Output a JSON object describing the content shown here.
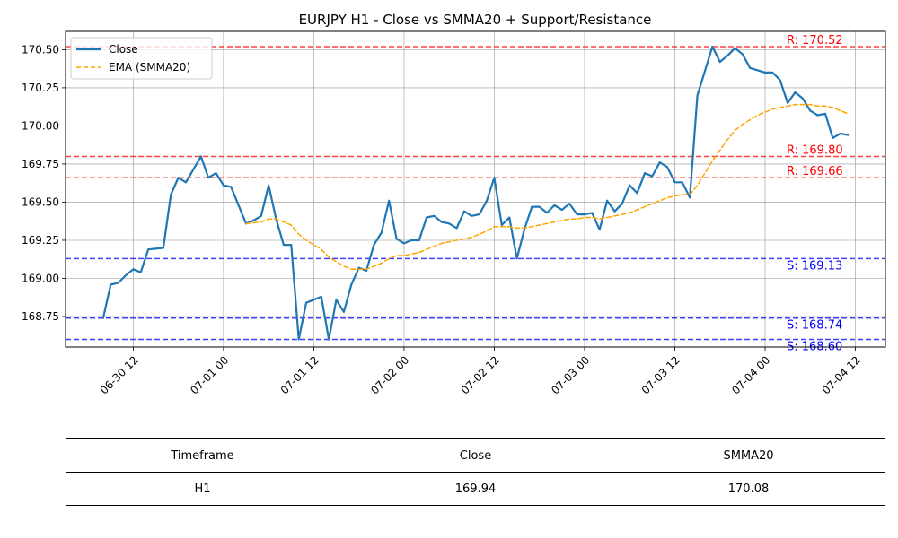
{
  "chart_data": {
    "type": "line",
    "title": "EURJPY H1 - Close vs SMMA20 + Support/Resistance",
    "xlabel": "",
    "ylabel": "",
    "ylim": [
      168.55,
      170.62
    ],
    "xlim": [
      "2025-06-30 03:00",
      "2025-07-04 16:00"
    ],
    "grid": true,
    "legend_position": "top-left",
    "x_ticks": [
      {
        "t": "2025-06-30 12:00",
        "label": "06-30 12"
      },
      {
        "t": "2025-07-01 00:00",
        "label": "07-01 00"
      },
      {
        "t": "2025-07-01 12:00",
        "label": "07-01 12"
      },
      {
        "t": "2025-07-02 00:00",
        "label": "07-02 00"
      },
      {
        "t": "2025-07-02 12:00",
        "label": "07-02 12"
      },
      {
        "t": "2025-07-03 00:00",
        "label": "07-03 00"
      },
      {
        "t": "2025-07-03 12:00",
        "label": "07-03 12"
      },
      {
        "t": "2025-07-04 00:00",
        "label": "07-04 00"
      },
      {
        "t": "2025-07-04 12:00",
        "label": "07-04 12"
      }
    ],
    "y_ticks": [
      {
        "v": 168.75,
        "label": "168.75"
      },
      {
        "v": 169.0,
        "label": "169.00"
      },
      {
        "v": 169.25,
        "label": "169.25"
      },
      {
        "v": 169.5,
        "label": "169.50"
      },
      {
        "v": 169.75,
        "label": "169.75"
      },
      {
        "v": 170.0,
        "label": "170.00"
      },
      {
        "v": 170.25,
        "label": "170.25"
      },
      {
        "v": 170.5,
        "label": "170.50"
      }
    ],
    "series": [
      {
        "name": "Close",
        "color": "#1f77b4",
        "style": "solid",
        "points": [
          [
            "2025-06-30 08:00",
            168.74
          ],
          [
            "2025-06-30 09:00",
            168.96
          ],
          [
            "2025-06-30 10:00",
            168.97
          ],
          [
            "2025-06-30 11:00",
            169.02
          ],
          [
            "2025-06-30 12:00",
            169.06
          ],
          [
            "2025-06-30 13:00",
            169.04
          ],
          [
            "2025-06-30 14:00",
            169.19
          ],
          [
            "2025-06-30 16:00",
            169.2
          ],
          [
            "2025-06-30 17:00",
            169.55
          ],
          [
            "2025-06-30 18:00",
            169.66
          ],
          [
            "2025-06-30 19:00",
            169.63
          ],
          [
            "2025-06-30 21:00",
            169.8
          ],
          [
            "2025-06-30 22:00",
            169.66
          ],
          [
            "2025-06-30 23:00",
            169.69
          ],
          [
            "2025-07-01 00:00",
            169.61
          ],
          [
            "2025-07-01 01:00",
            169.6
          ],
          [
            "2025-07-01 03:00",
            169.36
          ],
          [
            "2025-07-01 04:00",
            169.38
          ],
          [
            "2025-07-01 05:00",
            169.41
          ],
          [
            "2025-07-01 06:00",
            169.61
          ],
          [
            "2025-07-01 07:00",
            169.39
          ],
          [
            "2025-07-01 08:00",
            169.22
          ],
          [
            "2025-07-01 09:00",
            169.22
          ],
          [
            "2025-07-01 10:00",
            168.6
          ],
          [
            "2025-07-01 11:00",
            168.84
          ],
          [
            "2025-07-01 12:00",
            168.86
          ],
          [
            "2025-07-01 13:00",
            168.88
          ],
          [
            "2025-07-01 14:00",
            168.6
          ],
          [
            "2025-07-01 15:00",
            168.86
          ],
          [
            "2025-07-01 16:00",
            168.78
          ],
          [
            "2025-07-01 17:00",
            168.96
          ],
          [
            "2025-07-01 18:00",
            169.07
          ],
          [
            "2025-07-01 19:00",
            169.05
          ],
          [
            "2025-07-01 20:00",
            169.22
          ],
          [
            "2025-07-01 21:00",
            169.3
          ],
          [
            "2025-07-01 22:00",
            169.51
          ],
          [
            "2025-07-01 23:00",
            169.26
          ],
          [
            "2025-07-02 00:00",
            169.23
          ],
          [
            "2025-07-02 01:00",
            169.25
          ],
          [
            "2025-07-02 02:00",
            169.25
          ],
          [
            "2025-07-02 03:00",
            169.4
          ],
          [
            "2025-07-02 04:00",
            169.41
          ],
          [
            "2025-07-02 05:00",
            169.37
          ],
          [
            "2025-07-02 06:00",
            169.36
          ],
          [
            "2025-07-02 07:00",
            169.33
          ],
          [
            "2025-07-02 08:00",
            169.44
          ],
          [
            "2025-07-02 09:00",
            169.41
          ],
          [
            "2025-07-02 10:00",
            169.42
          ],
          [
            "2025-07-02 11:00",
            169.51
          ],
          [
            "2025-07-02 12:00",
            169.66
          ],
          [
            "2025-07-02 13:00",
            169.35
          ],
          [
            "2025-07-02 14:00",
            169.4
          ],
          [
            "2025-07-02 15:00",
            169.13
          ],
          [
            "2025-07-02 16:00",
            169.32
          ],
          [
            "2025-07-02 17:00",
            169.47
          ],
          [
            "2025-07-02 18:00",
            169.47
          ],
          [
            "2025-07-02 19:00",
            169.43
          ],
          [
            "2025-07-02 20:00",
            169.48
          ],
          [
            "2025-07-02 21:00",
            169.45
          ],
          [
            "2025-07-02 22:00",
            169.49
          ],
          [
            "2025-07-02 23:00",
            169.42
          ],
          [
            "2025-07-03 00:00",
            169.42
          ],
          [
            "2025-07-03 01:00",
            169.43
          ],
          [
            "2025-07-03 02:00",
            169.32
          ],
          [
            "2025-07-03 03:00",
            169.51
          ],
          [
            "2025-07-03 04:00",
            169.44
          ],
          [
            "2025-07-03 05:00",
            169.49
          ],
          [
            "2025-07-03 06:00",
            169.61
          ],
          [
            "2025-07-03 07:00",
            169.56
          ],
          [
            "2025-07-03 08:00",
            169.69
          ],
          [
            "2025-07-03 09:00",
            169.67
          ],
          [
            "2025-07-03 10:00",
            169.76
          ],
          [
            "2025-07-03 11:00",
            169.73
          ],
          [
            "2025-07-03 12:00",
            169.63
          ],
          [
            "2025-07-03 13:00",
            169.63
          ],
          [
            "2025-07-03 14:00",
            169.53
          ],
          [
            "2025-07-03 15:00",
            170.2
          ],
          [
            "2025-07-03 16:00",
            170.36
          ],
          [
            "2025-07-03 17:00",
            170.52
          ],
          [
            "2025-07-03 18:00",
            170.42
          ],
          [
            "2025-07-03 19:00",
            170.46
          ],
          [
            "2025-07-03 20:00",
            170.51
          ],
          [
            "2025-07-03 21:00",
            170.47
          ],
          [
            "2025-07-03 22:00",
            170.38
          ],
          [
            "2025-07-04 00:00",
            170.35
          ],
          [
            "2025-07-04 01:00",
            170.35
          ],
          [
            "2025-07-04 02:00",
            170.3
          ],
          [
            "2025-07-04 03:00",
            170.15
          ],
          [
            "2025-07-04 04:00",
            170.22
          ],
          [
            "2025-07-04 05:00",
            170.18
          ],
          [
            "2025-07-04 06:00",
            170.1
          ],
          [
            "2025-07-04 07:00",
            170.07
          ],
          [
            "2025-07-04 08:00",
            170.08
          ],
          [
            "2025-07-04 09:00",
            169.92
          ],
          [
            "2025-07-04 10:00",
            169.95
          ],
          [
            "2025-07-04 11:00",
            169.94
          ]
        ]
      },
      {
        "name": "EMA (SMMA20)",
        "color": "#ffa500",
        "style": "dashed",
        "points": [
          [
            "2025-07-01 03:00",
            169.36
          ],
          [
            "2025-07-01 05:00",
            169.37
          ],
          [
            "2025-07-01 06:00",
            169.39
          ],
          [
            "2025-07-01 07:00",
            169.39
          ],
          [
            "2025-07-01 09:00",
            169.35
          ],
          [
            "2025-07-01 10:00",
            169.29
          ],
          [
            "2025-07-01 11:00",
            169.25
          ],
          [
            "2025-07-01 12:00",
            169.22
          ],
          [
            "2025-07-01 13:00",
            169.19
          ],
          [
            "2025-07-01 14:00",
            169.14
          ],
          [
            "2025-07-01 15:00",
            169.11
          ],
          [
            "2025-07-01 16:00",
            169.08
          ],
          [
            "2025-07-01 17:00",
            169.06
          ],
          [
            "2025-07-01 18:00",
            169.06
          ],
          [
            "2025-07-01 19:00",
            169.06
          ],
          [
            "2025-07-01 20:00",
            169.08
          ],
          [
            "2025-07-01 21:00",
            169.1
          ],
          [
            "2025-07-01 22:00",
            169.13
          ],
          [
            "2025-07-01 23:00",
            169.15
          ],
          [
            "2025-07-02 00:00",
            169.15
          ],
          [
            "2025-07-02 01:00",
            169.16
          ],
          [
            "2025-07-02 02:00",
            169.17
          ],
          [
            "2025-07-02 03:00",
            169.19
          ],
          [
            "2025-07-02 04:00",
            169.21
          ],
          [
            "2025-07-02 05:00",
            169.23
          ],
          [
            "2025-07-02 06:00",
            169.24
          ],
          [
            "2025-07-02 07:00",
            169.25
          ],
          [
            "2025-07-02 08:00",
            169.26
          ],
          [
            "2025-07-02 09:00",
            169.27
          ],
          [
            "2025-07-02 10:00",
            169.29
          ],
          [
            "2025-07-02 11:00",
            169.31
          ],
          [
            "2025-07-02 12:00",
            169.34
          ],
          [
            "2025-07-02 13:00",
            169.34
          ],
          [
            "2025-07-02 14:00",
            169.34
          ],
          [
            "2025-07-02 15:00",
            169.33
          ],
          [
            "2025-07-02 16:00",
            169.33
          ],
          [
            "2025-07-02 17:00",
            169.34
          ],
          [
            "2025-07-02 18:00",
            169.35
          ],
          [
            "2025-07-02 19:00",
            169.36
          ],
          [
            "2025-07-02 20:00",
            169.37
          ],
          [
            "2025-07-02 21:00",
            169.38
          ],
          [
            "2025-07-02 22:00",
            169.39
          ],
          [
            "2025-07-02 23:00",
            169.39
          ],
          [
            "2025-07-03 00:00",
            169.4
          ],
          [
            "2025-07-03 01:00",
            169.4
          ],
          [
            "2025-07-03 02:00",
            169.39
          ],
          [
            "2025-07-03 03:00",
            169.4
          ],
          [
            "2025-07-03 04:00",
            169.41
          ],
          [
            "2025-07-03 05:00",
            169.42
          ],
          [
            "2025-07-03 06:00",
            169.43
          ],
          [
            "2025-07-03 07:00",
            169.45
          ],
          [
            "2025-07-03 08:00",
            169.47
          ],
          [
            "2025-07-03 09:00",
            169.49
          ],
          [
            "2025-07-03 10:00",
            169.51
          ],
          [
            "2025-07-03 11:00",
            169.53
          ],
          [
            "2025-07-03 12:00",
            169.54
          ],
          [
            "2025-07-03 13:00",
            169.55
          ],
          [
            "2025-07-03 14:00",
            169.55
          ],
          [
            "2025-07-03 15:00",
            169.61
          ],
          [
            "2025-07-03 16:00",
            169.69
          ],
          [
            "2025-07-03 17:00",
            169.77
          ],
          [
            "2025-07-03 18:00",
            169.84
          ],
          [
            "2025-07-03 19:00",
            169.91
          ],
          [
            "2025-07-03 20:00",
            169.97
          ],
          [
            "2025-07-03 21:00",
            170.01
          ],
          [
            "2025-07-03 22:00",
            170.04
          ],
          [
            "2025-07-03 23:00",
            170.07
          ],
          [
            "2025-07-04 00:00",
            170.09
          ],
          [
            "2025-07-04 01:00",
            170.11
          ],
          [
            "2025-07-04 02:00",
            170.12
          ],
          [
            "2025-07-04 03:00",
            170.13
          ],
          [
            "2025-07-04 04:00",
            170.14
          ],
          [
            "2025-07-04 05:00",
            170.14
          ],
          [
            "2025-07-04 06:00",
            170.14
          ],
          [
            "2025-07-04 07:00",
            170.13
          ],
          [
            "2025-07-04 08:00",
            170.13
          ],
          [
            "2025-07-04 09:00",
            170.12
          ],
          [
            "2025-07-04 10:00",
            170.1
          ],
          [
            "2025-07-04 11:00",
            170.08
          ]
        ]
      }
    ],
    "levels": [
      {
        "kind": "resistance",
        "value": 170.52,
        "label": "R: 170.52",
        "color": "#ff0000"
      },
      {
        "kind": "resistance",
        "value": 169.8,
        "label": "R: 169.80",
        "color": "#ff0000"
      },
      {
        "kind": "resistance",
        "value": 169.66,
        "label": "R: 169.66",
        "color": "#ff0000"
      },
      {
        "kind": "support",
        "value": 169.13,
        "label": "S: 169.13",
        "color": "#0000ff"
      },
      {
        "kind": "support",
        "value": 168.74,
        "label": "S: 168.74",
        "color": "#0000ff"
      },
      {
        "kind": "support",
        "value": 168.6,
        "label": "S: 168.60",
        "color": "#0000ff"
      }
    ]
  },
  "table": {
    "headers": [
      "Timeframe",
      "Close",
      "SMMA20"
    ],
    "row": [
      "H1",
      "169.94",
      "170.08"
    ]
  }
}
